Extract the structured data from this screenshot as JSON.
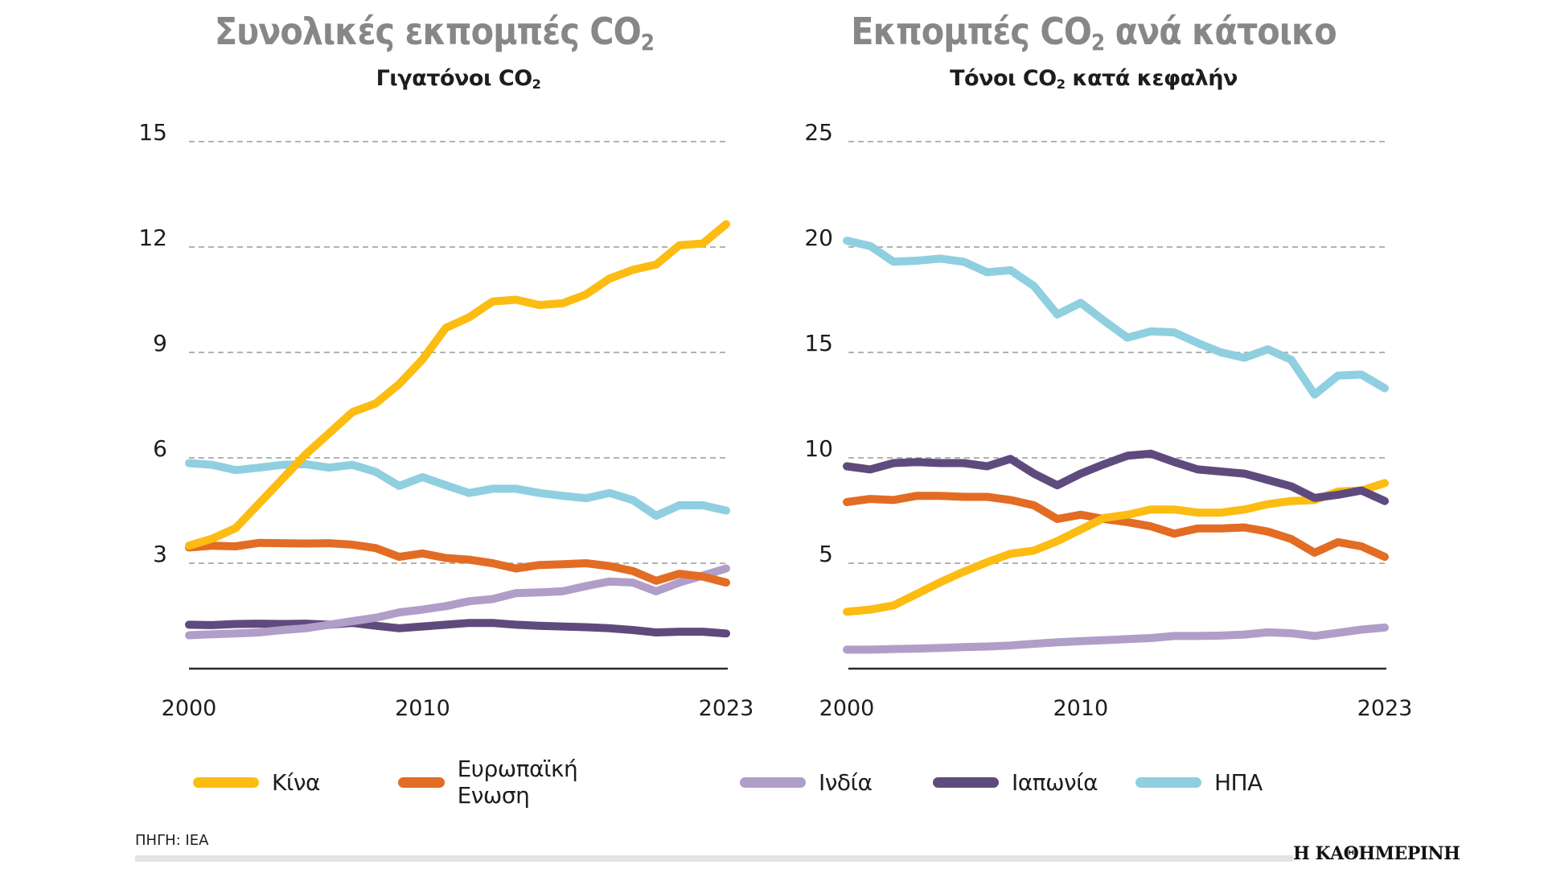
{
  "colors": {
    "china": "#fcbc12",
    "eu": "#e36c25",
    "india": "#b09ec9",
    "japan": "#5f4a7d",
    "usa": "#8fcfe0",
    "title_gray": "#858789",
    "grid": "#9a9a9a",
    "axis": "#2a2a2a"
  },
  "legend": [
    {
      "key": "china",
      "label": "Κίνα"
    },
    {
      "key": "eu",
      "label": "Ευρωπαϊκή Ενωση"
    },
    {
      "key": "india",
      "label": "Ινδία"
    },
    {
      "key": "japan",
      "label": "Ιαπωνία"
    },
    {
      "key": "usa",
      "label": "ΗΠΑ"
    }
  ],
  "source": "ΠΗΓΗ: IEA",
  "brand": "Η ΚΑΘΗΜΕΡΙΝΗ",
  "chart_data": [
    {
      "type": "line",
      "title": "Συνολικές εκπομπές CO₂",
      "title_main": "Συνολικές εκπομπές CO",
      "title_sub": "2",
      "subtitle": "Γιγατόνοι CO₂",
      "subtitle_main": "Γιγατόνοι CO",
      "subtitle_sub": "2",
      "xlabel": "",
      "ylabel": "Γιγατόνοι CO₂",
      "ylim": [
        0,
        15
      ],
      "yticks": [
        3,
        6,
        9,
        12,
        15
      ],
      "xlim": [
        2000,
        2023
      ],
      "xticks": [
        2000,
        2010,
        2023
      ],
      "grid": true,
      "x": [
        2000,
        2001,
        2002,
        2003,
        2004,
        2005,
        2006,
        2007,
        2008,
        2009,
        2010,
        2011,
        2012,
        2013,
        2014,
        2015,
        2016,
        2017,
        2018,
        2019,
        2020,
        2021,
        2022,
        2023
      ],
      "series": [
        {
          "key": "usa",
          "name": "ΗΠΑ",
          "values": [
            5.85,
            5.8,
            5.65,
            5.72,
            5.8,
            5.82,
            5.72,
            5.8,
            5.6,
            5.2,
            5.45,
            5.22,
            5.0,
            5.12,
            5.12,
            5.0,
            4.92,
            4.85,
            5.0,
            4.8,
            4.35,
            4.65,
            4.65,
            4.5
          ]
        },
        {
          "key": "japan",
          "name": "Ιαπωνία",
          "values": [
            1.25,
            1.24,
            1.27,
            1.28,
            1.27,
            1.28,
            1.25,
            1.3,
            1.22,
            1.15,
            1.2,
            1.25,
            1.3,
            1.3,
            1.25,
            1.22,
            1.2,
            1.18,
            1.15,
            1.1,
            1.03,
            1.05,
            1.05,
            1.0
          ]
        },
        {
          "key": "india",
          "name": "Ινδία",
          "values": [
            0.95,
            0.98,
            1.0,
            1.03,
            1.1,
            1.15,
            1.25,
            1.35,
            1.45,
            1.6,
            1.68,
            1.78,
            1.92,
            1.98,
            2.15,
            2.17,
            2.2,
            2.35,
            2.48,
            2.45,
            2.2,
            2.45,
            2.65,
            2.85
          ]
        },
        {
          "key": "eu",
          "name": "Ευρωπαϊκή Ενωση",
          "values": [
            3.45,
            3.5,
            3.48,
            3.58,
            3.57,
            3.56,
            3.57,
            3.53,
            3.43,
            3.18,
            3.28,
            3.15,
            3.1,
            3.0,
            2.85,
            2.95,
            2.97,
            3.0,
            2.92,
            2.78,
            2.5,
            2.7,
            2.62,
            2.45
          ]
        },
        {
          "key": "china",
          "name": "Κίνα",
          "values": [
            3.5,
            3.7,
            4.0,
            4.7,
            5.4,
            6.1,
            6.7,
            7.3,
            7.55,
            8.1,
            8.8,
            9.7,
            10.0,
            10.45,
            10.5,
            10.35,
            10.4,
            10.65,
            11.1,
            11.35,
            11.5,
            12.05,
            12.1,
            12.65
          ]
        }
      ]
    },
    {
      "type": "line",
      "title": "Εκπομπές CO₂ ανά κάτοικο",
      "title_main": "Εκπομπές CO",
      "title_sub": "2",
      "title_after": " ανά κάτοικο",
      "subtitle": "Τόνοι CO₂ κατά κεφαλήν",
      "subtitle_main": "Τόνοι CO",
      "subtitle_sub": "2",
      "subtitle_after": " κατά κεφαλήν",
      "xlabel": "",
      "ylabel": "Τόνοι CO₂ κατά κεφαλήν",
      "ylim": [
        0,
        25
      ],
      "yticks": [
        5,
        10,
        15,
        20,
        25
      ],
      "xlim": [
        2000,
        2023
      ],
      "xticks": [
        2000,
        2010,
        2023
      ],
      "grid": true,
      "x": [
        2000,
        2001,
        2002,
        2003,
        2004,
        2005,
        2006,
        2007,
        2008,
        2009,
        2010,
        2011,
        2012,
        2013,
        2014,
        2015,
        2016,
        2017,
        2018,
        2019,
        2020,
        2021,
        2022,
        2023
      ],
      "series": [
        {
          "key": "india",
          "name": "Ινδία",
          "values": [
            0.9,
            0.9,
            0.93,
            0.95,
            0.98,
            1.02,
            1.05,
            1.1,
            1.18,
            1.25,
            1.3,
            1.35,
            1.4,
            1.45,
            1.55,
            1.55,
            1.57,
            1.62,
            1.72,
            1.68,
            1.55,
            1.7,
            1.85,
            1.95
          ]
        },
        {
          "key": "eu",
          "name": "Ευρωπαϊκή Ενωση",
          "values": [
            7.9,
            8.05,
            8.0,
            8.2,
            8.2,
            8.15,
            8.15,
            8.0,
            7.75,
            7.1,
            7.3,
            7.1,
            6.95,
            6.75,
            6.4,
            6.65,
            6.65,
            6.7,
            6.5,
            6.15,
            5.5,
            6.0,
            5.8,
            5.3
          ]
        },
        {
          "key": "china",
          "name": "Κίνα",
          "values": [
            2.7,
            2.8,
            3.0,
            3.55,
            4.1,
            4.6,
            5.05,
            5.45,
            5.6,
            6.05,
            6.6,
            7.15,
            7.3,
            7.55,
            7.55,
            7.4,
            7.4,
            7.55,
            7.8,
            7.95,
            8.0,
            8.4,
            8.45,
            8.8
          ]
        },
        {
          "key": "japan",
          "name": "Ιαπωνία",
          "values": [
            9.6,
            9.45,
            9.75,
            9.8,
            9.75,
            9.75,
            9.6,
            9.95,
            9.25,
            8.7,
            9.25,
            9.7,
            10.1,
            10.2,
            9.8,
            9.45,
            9.35,
            9.25,
            8.95,
            8.65,
            8.1,
            8.25,
            8.45,
            7.95
          ]
        },
        {
          "key": "usa",
          "name": "ΗΠΑ",
          "values": [
            20.3,
            20.05,
            19.3,
            19.35,
            19.45,
            19.3,
            18.8,
            18.9,
            18.15,
            16.8,
            17.35,
            16.5,
            15.7,
            16.0,
            15.95,
            15.45,
            15.0,
            14.75,
            15.15,
            14.65,
            13.0,
            13.9,
            13.95,
            13.3
          ]
        }
      ]
    }
  ]
}
